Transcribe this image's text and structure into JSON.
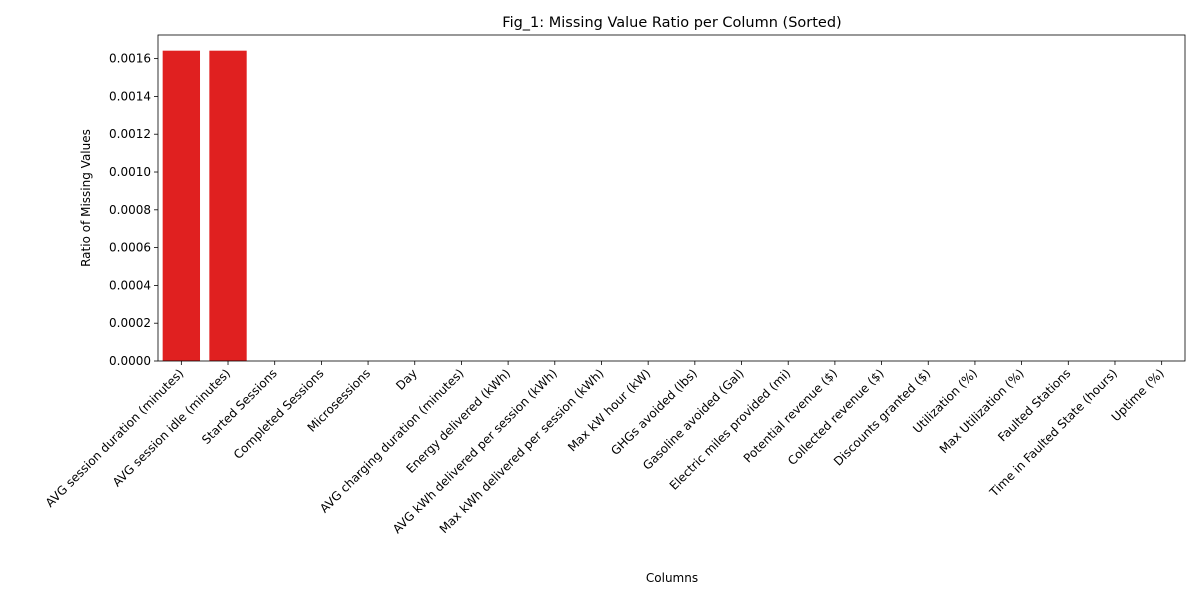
{
  "chart_data": {
    "type": "bar",
    "title": "Fig_1: Missing Value Ratio per Column (Sorted)",
    "xlabel": "Columns",
    "ylabel": "Ratio of Missing Values",
    "categories": [
      "AVG session duration (minutes)",
      "AVG session idle (minutes)",
      "Started Sessions",
      "Completed Sessions",
      "Microsessions",
      "Day",
      "AVG charging duration (minutes)",
      "Energy delivered (kWh)",
      "AVG kWh delivered per session (kWh)",
      "Max kWh delivered per session (kWh)",
      "Max kW hour (kW)",
      "GHGs avoided (lbs)",
      "Gasoline avoided (Gal)",
      "Electric miles provided (mi)",
      "Potential revenue ($)",
      "Collected revenue ($)",
      "Discounts granted ($)",
      "Utilization (%)",
      "Max Utilization (%)",
      "Faulted Stations",
      "Time in Faulted State (hours)",
      "Uptime (%)"
    ],
    "values": [
      0.001642,
      0.001642,
      0,
      0,
      0,
      0,
      0,
      0,
      0,
      0,
      0,
      0,
      0,
      0,
      0,
      0,
      0,
      0,
      0,
      0,
      0,
      0
    ],
    "ylim": [
      0,
      0.001725
    ],
    "yticks": [
      "0.0000",
      "0.0002",
      "0.0004",
      "0.0006",
      "0.0008",
      "0.0010",
      "0.0012",
      "0.0014",
      "0.0016"
    ],
    "grid": false,
    "legend": "none",
    "bar_color": "#e02020"
  }
}
